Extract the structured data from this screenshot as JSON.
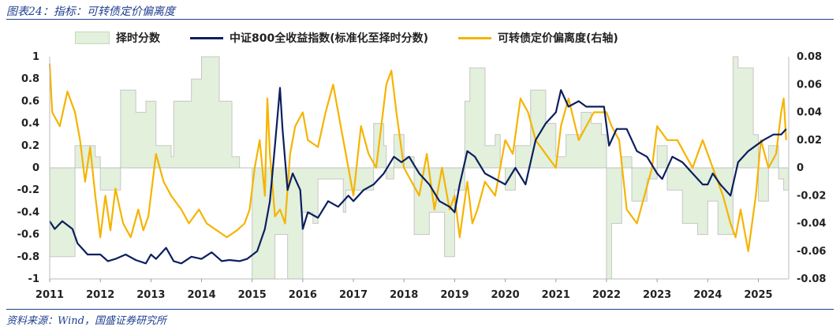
{
  "header": {
    "title": "图表24：指标：可转债定价偏离度"
  },
  "footer": {
    "source": "资料来源：Wind，国盛证券研究所"
  },
  "colors": {
    "area_fill": "#e2f0dc",
    "area_edge": "#c7c7c7",
    "index_line": "#0c1f5e",
    "deviation_line": "#f5b400"
  },
  "chart_data": {
    "type": "line",
    "legend": {
      "position": "top",
      "area": "择时分数",
      "index": "中证800全收益指数(标准化至择时分数)",
      "deviation": "可转债定价偏离度(右轴)"
    },
    "x_labels": [
      "2011",
      "2012",
      "2013",
      "2014",
      "2015",
      "2016",
      "2017",
      "2018",
      "2019",
      "2020",
      "2021",
      "2022",
      "2023",
      "2024",
      "2025"
    ],
    "ylim_left": [
      -1,
      1
    ],
    "ylim_right": [
      -0.08,
      0.08
    ],
    "y_ticks_left": [
      "1",
      "0.8",
      "0.6",
      "0.4",
      "0.2",
      "0",
      "-0.2",
      "-0.4",
      "-0.6",
      "-0.8",
      "-1"
    ],
    "y_ticks_right": [
      "0.08",
      "0.06",
      "0.04",
      "0.02",
      "0",
      "-0.02",
      "-0.04",
      "-0.06",
      "-0.08"
    ],
    "series": [
      {
        "name": "择时分数",
        "kind": "area",
        "axis": "left",
        "x": [
          2011.0,
          2011.5,
          2011.55,
          2011.9,
          2012.0,
          2012.4,
          2012.7,
          2012.9,
          2013.1,
          2013.4,
          2013.45,
          2013.8,
          2014.0,
          2014.3,
          2014.35,
          2014.6,
          2014.75,
          2014.9,
          2015.0,
          2015.4,
          2015.45,
          2015.7,
          2015.8,
          2016.0,
          2016.2,
          2016.3,
          2016.6,
          2016.8,
          2016.85,
          2017.1,
          2017.4,
          2017.6,
          2017.65,
          2017.8,
          2018.0,
          2018.2,
          2018.5,
          2018.8,
          2019.0,
          2019.2,
          2019.3,
          2019.6,
          2019.8,
          2019.9,
          2020.0,
          2020.2,
          2020.5,
          2020.8,
          2021.0,
          2021.2,
          2021.5,
          2021.7,
          2021.9,
          2022.0,
          2022.1,
          2022.3,
          2022.5,
          2022.8,
          2023.0,
          2023.2,
          2023.5,
          2023.8,
          2024.0,
          2024.2,
          2024.5,
          2024.6,
          2024.9,
          2025.0,
          2025.2,
          2025.4,
          2025.5,
          2025.6
        ],
        "y": [
          -0.8,
          0.2,
          0.2,
          0.1,
          -0.2,
          0.7,
          0.5,
          0.6,
          0.2,
          0.1,
          0.6,
          0.8,
          1.0,
          1.0,
          0.6,
          0.1,
          0.0,
          0.0,
          -1.0,
          -1.0,
          -0.6,
          -1.0,
          -1.0,
          -0.4,
          -0.5,
          -0.1,
          -0.1,
          -0.4,
          -0.2,
          -0.2,
          0.4,
          0.2,
          -0.1,
          0.3,
          0.1,
          -0.6,
          -0.4,
          -0.8,
          -0.2,
          0.6,
          0.9,
          0.2,
          0.3,
          0.0,
          -0.2,
          0.2,
          0.7,
          0.4,
          0.1,
          0.3,
          0.5,
          0.4,
          0.3,
          -1.0,
          -0.5,
          0.1,
          -0.3,
          -0.1,
          0.2,
          -0.2,
          -0.5,
          -0.6,
          -0.3,
          -0.6,
          1.0,
          0.9,
          0.3,
          -0.3,
          0.2,
          -0.1,
          -0.2,
          -0.9
        ]
      },
      {
        "name": "中证800全收益指数(标准化至择时分数)",
        "kind": "line",
        "axis": "left",
        "x": [
          2011.0,
          2011.1,
          2011.25,
          2011.45,
          2011.55,
          2011.75,
          2012.0,
          2012.15,
          2012.3,
          2012.5,
          2012.7,
          2012.9,
          2013.0,
          2013.1,
          2013.3,
          2013.45,
          2013.6,
          2013.8,
          2014.0,
          2014.2,
          2014.4,
          2014.55,
          2014.75,
          2014.9,
          2015.1,
          2015.25,
          2015.35,
          2015.45,
          2015.55,
          2015.6,
          2015.7,
          2015.8,
          2015.95,
          2016.0,
          2016.1,
          2016.3,
          2016.5,
          2016.7,
          2016.9,
          2017.0,
          2017.2,
          2017.4,
          2017.6,
          2017.8,
          2017.95,
          2018.1,
          2018.3,
          2018.5,
          2018.7,
          2018.9,
          2019.0,
          2019.1,
          2019.25,
          2019.4,
          2019.6,
          2019.8,
          2020.0,
          2020.2,
          2020.4,
          2020.6,
          2020.8,
          2021.0,
          2021.1,
          2021.25,
          2021.45,
          2021.6,
          2021.8,
          2021.95,
          2022.05,
          2022.2,
          2022.4,
          2022.6,
          2022.8,
          2023.0,
          2023.1,
          2023.3,
          2023.5,
          2023.7,
          2023.9,
          2024.0,
          2024.1,
          2024.25,
          2024.45,
          2024.6,
          2024.8,
          2024.95,
          2025.1,
          2025.3,
          2025.45,
          2025.55
        ],
        "y": [
          -0.48,
          -0.55,
          -0.48,
          -0.55,
          -0.68,
          -0.78,
          -0.78,
          -0.84,
          -0.82,
          -0.78,
          -0.83,
          -0.86,
          -0.78,
          -0.82,
          -0.72,
          -0.84,
          -0.86,
          -0.8,
          -0.82,
          -0.76,
          -0.84,
          -0.83,
          -0.84,
          -0.82,
          -0.75,
          -0.55,
          -0.3,
          0.2,
          0.72,
          0.35,
          -0.2,
          -0.05,
          -0.2,
          -0.55,
          -0.4,
          -0.45,
          -0.3,
          -0.35,
          -0.25,
          -0.3,
          -0.2,
          -0.15,
          -0.05,
          0.1,
          0.05,
          0.1,
          -0.05,
          -0.15,
          -0.3,
          -0.35,
          -0.4,
          -0.15,
          0.15,
          0.1,
          -0.05,
          -0.1,
          -0.15,
          0.0,
          -0.15,
          0.25,
          0.4,
          0.5,
          0.7,
          0.55,
          0.6,
          0.55,
          0.55,
          0.55,
          0.2,
          0.35,
          0.35,
          0.15,
          0.1,
          -0.05,
          -0.1,
          0.1,
          0.05,
          -0.05,
          -0.15,
          -0.15,
          -0.05,
          -0.15,
          -0.25,
          0.05,
          0.15,
          0.2,
          0.25,
          0.3,
          0.3,
          0.35
        ]
      },
      {
        "name": "可转债定价偏离度(右轴)",
        "kind": "line",
        "axis": "right",
        "x": [
          2011.0,
          2011.05,
          2011.2,
          2011.35,
          2011.5,
          2011.6,
          2011.7,
          2011.8,
          2011.9,
          2012.0,
          2012.1,
          2012.2,
          2012.3,
          2012.45,
          2012.6,
          2012.75,
          2012.85,
          2012.95,
          2013.1,
          2013.25,
          2013.4,
          2013.5,
          2013.6,
          2013.75,
          2013.95,
          2014.1,
          2014.3,
          2014.5,
          2014.7,
          2014.85,
          2014.95,
          2015.05,
          2015.15,
          2015.25,
          2015.3,
          2015.35,
          2015.45,
          2015.55,
          2015.65,
          2015.75,
          2015.85,
          2016.0,
          2016.1,
          2016.3,
          2016.45,
          2016.6,
          2016.75,
          2016.9,
          2017.0,
          2017.15,
          2017.3,
          2017.45,
          2017.55,
          2017.65,
          2017.75,
          2017.85,
          2018.0,
          2018.15,
          2018.3,
          2018.45,
          2018.6,
          2018.75,
          2018.9,
          2019.0,
          2019.1,
          2019.25,
          2019.35,
          2019.45,
          2019.6,
          2019.8,
          2020.0,
          2020.15,
          2020.3,
          2020.45,
          2020.6,
          2020.8,
          2021.0,
          2021.1,
          2021.25,
          2021.45,
          2021.6,
          2021.75,
          2021.85,
          2022.0,
          2022.1,
          2022.25,
          2022.4,
          2022.6,
          2022.75,
          2022.9,
          2023.0,
          2023.2,
          2023.4,
          2023.55,
          2023.7,
          2023.9,
          2024.0,
          2024.1,
          2024.2,
          2024.3,
          2024.45,
          2024.55,
          2024.65,
          2024.8,
          2024.95,
          2025.05,
          2025.2,
          2025.35,
          2025.45,
          2025.5,
          2025.55
        ],
        "y": [
          0.075,
          0.04,
          0.03,
          0.055,
          0.04,
          0.02,
          -0.01,
          0.015,
          -0.02,
          -0.05,
          -0.02,
          -0.045,
          -0.015,
          -0.04,
          -0.05,
          -0.03,
          -0.045,
          -0.035,
          0.01,
          -0.01,
          -0.02,
          -0.025,
          -0.03,
          -0.04,
          -0.03,
          -0.04,
          -0.045,
          -0.05,
          -0.045,
          -0.04,
          -0.03,
          0.0,
          0.02,
          -0.02,
          0.05,
          0.01,
          -0.035,
          -0.03,
          -0.04,
          0.01,
          0.03,
          0.04,
          0.02,
          0.015,
          0.04,
          0.06,
          0.03,
          0.0,
          -0.02,
          0.03,
          0.01,
          0.0,
          0.03,
          0.06,
          0.07,
          0.04,
          0.0,
          -0.01,
          -0.02,
          0.01,
          -0.03,
          0.0,
          -0.03,
          -0.02,
          -0.05,
          -0.01,
          -0.04,
          -0.03,
          -0.01,
          -0.02,
          0.02,
          0.01,
          0.05,
          0.04,
          0.02,
          0.01,
          0.0,
          0.03,
          0.05,
          0.02,
          0.03,
          0.04,
          0.04,
          0.04,
          0.03,
          0.02,
          -0.03,
          -0.04,
          -0.02,
          0.0,
          0.03,
          0.02,
          0.02,
          0.01,
          0.0,
          0.02,
          0.01,
          0.0,
          -0.01,
          -0.02,
          -0.04,
          -0.05,
          -0.03,
          -0.06,
          -0.02,
          0.02,
          0.0,
          0.01,
          0.04,
          0.05,
          0.02
        ]
      }
    ]
  }
}
